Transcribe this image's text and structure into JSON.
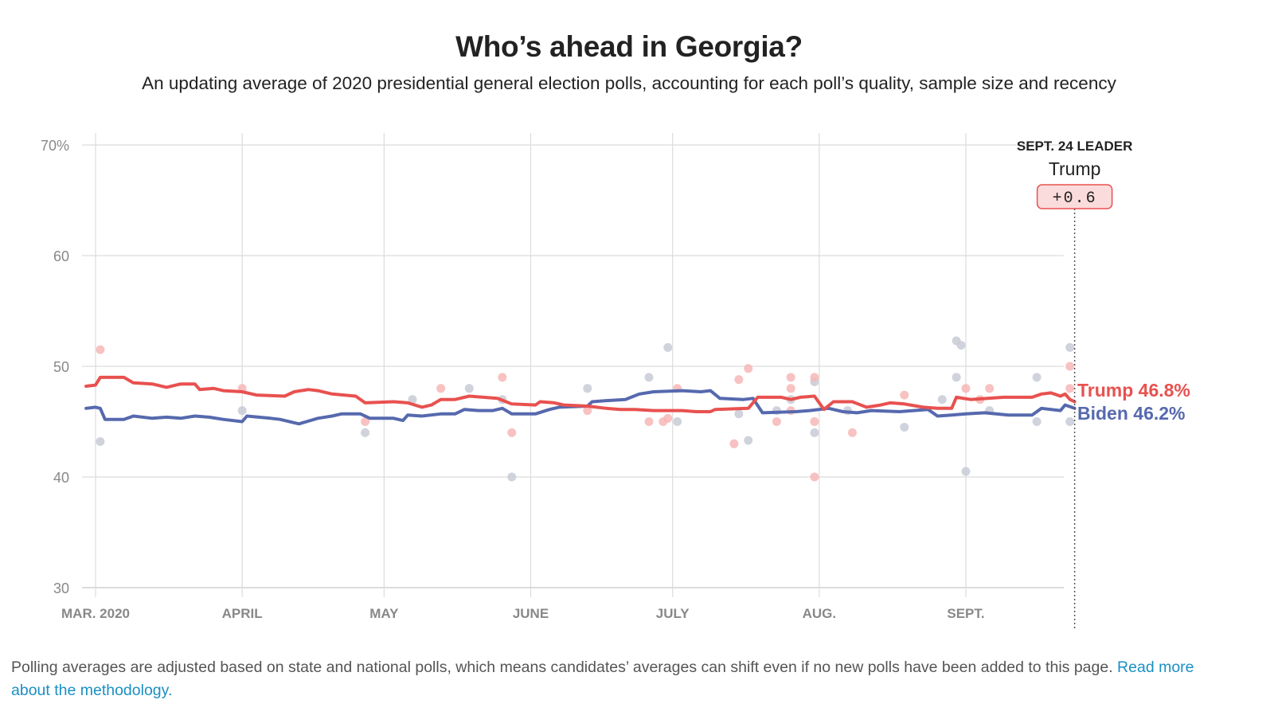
{
  "title": "Who’s ahead in Georgia?",
  "subtitle": "An updating average of 2020 presidential general election polls, accounting for each poll’s quality, sample size and recency",
  "footnote": {
    "text": "Polling averages are adjusted based on state and national polls, which means candidates’ averages can shift even if no new polls have been added to this page. ",
    "link": "Read more about the methodology."
  },
  "chart_data": {
    "type": "line",
    "x_axis": {
      "range": [
        "2020-02-28",
        "2020-09-24"
      ],
      "ticks": [
        {
          "date": "2020-03-01",
          "label": "MAR. 2020"
        },
        {
          "date": "2020-04-01",
          "label": "APRIL"
        },
        {
          "date": "2020-05-01",
          "label": "MAY"
        },
        {
          "date": "2020-06-01",
          "label": "JUNE"
        },
        {
          "date": "2020-07-01",
          "label": "JULY"
        },
        {
          "date": "2020-08-01",
          "label": "AUG."
        },
        {
          "date": "2020-09-01",
          "label": "SEPT."
        }
      ]
    },
    "y_axis": {
      "range": [
        30,
        70
      ],
      "ticks": [
        {
          "value": 70,
          "label": "70%"
        },
        {
          "value": 60,
          "label": "60"
        },
        {
          "value": 50,
          "label": "50"
        },
        {
          "value": 40,
          "label": "40"
        },
        {
          "value": 30,
          "label": "30"
        }
      ]
    },
    "grid": true,
    "leader_box": {
      "heading": "SEPT. 24 LEADER",
      "name": "Trump",
      "margin": "+0.6",
      "date": "2020-09-24"
    },
    "series": [
      {
        "name": "Trump",
        "end_label": "Trump 46.8%",
        "color": "#e8514f",
        "poll_color": "#f6b7b6",
        "average": [
          [
            "2020-02-28",
            48.2
          ],
          [
            "2020-03-01",
            48.3
          ],
          [
            "2020-03-02",
            49.0
          ],
          [
            "2020-03-07",
            49.0
          ],
          [
            "2020-03-09",
            48.5
          ],
          [
            "2020-03-13",
            48.4
          ],
          [
            "2020-03-16",
            48.1
          ],
          [
            "2020-03-19",
            48.4
          ],
          [
            "2020-03-22",
            48.4
          ],
          [
            "2020-03-23",
            47.9
          ],
          [
            "2020-03-26",
            48.0
          ],
          [
            "2020-03-28",
            47.8
          ],
          [
            "2020-04-01",
            47.7
          ],
          [
            "2020-04-04",
            47.4
          ],
          [
            "2020-04-10",
            47.3
          ],
          [
            "2020-04-12",
            47.7
          ],
          [
            "2020-04-15",
            47.9
          ],
          [
            "2020-04-17",
            47.8
          ],
          [
            "2020-04-20",
            47.5
          ],
          [
            "2020-04-25",
            47.3
          ],
          [
            "2020-04-27",
            46.7
          ],
          [
            "2020-05-03",
            46.8
          ],
          [
            "2020-05-06",
            46.7
          ],
          [
            "2020-05-09",
            46.3
          ],
          [
            "2020-05-11",
            46.5
          ],
          [
            "2020-05-13",
            47.0
          ],
          [
            "2020-05-16",
            47.0
          ],
          [
            "2020-05-19",
            47.3
          ],
          [
            "2020-05-25",
            47.1
          ],
          [
            "2020-05-28",
            46.6
          ],
          [
            "2020-06-02",
            46.5
          ],
          [
            "2020-06-03",
            46.8
          ],
          [
            "2020-06-06",
            46.7
          ],
          [
            "2020-06-08",
            46.5
          ],
          [
            "2020-06-13",
            46.4
          ],
          [
            "2020-06-17",
            46.2
          ],
          [
            "2020-06-20",
            46.1
          ],
          [
            "2020-06-23",
            46.1
          ],
          [
            "2020-06-27",
            46.0
          ],
          [
            "2020-07-03",
            46.0
          ],
          [
            "2020-07-06",
            45.9
          ],
          [
            "2020-07-09",
            45.9
          ],
          [
            "2020-07-10",
            46.1
          ],
          [
            "2020-07-17",
            46.2
          ],
          [
            "2020-07-19",
            47.2
          ],
          [
            "2020-07-24",
            47.2
          ],
          [
            "2020-07-26",
            47.0
          ],
          [
            "2020-07-28",
            47.2
          ],
          [
            "2020-07-31",
            47.3
          ],
          [
            "2020-08-02",
            46.1
          ],
          [
            "2020-08-04",
            46.8
          ],
          [
            "2020-08-08",
            46.8
          ],
          [
            "2020-08-11",
            46.3
          ],
          [
            "2020-08-14",
            46.5
          ],
          [
            "2020-08-16",
            46.7
          ],
          [
            "2020-08-19",
            46.6
          ],
          [
            "2020-08-23",
            46.3
          ],
          [
            "2020-08-26",
            46.2
          ],
          [
            "2020-08-29",
            46.2
          ],
          [
            "2020-08-30",
            47.2
          ],
          [
            "2020-09-02",
            47.0
          ],
          [
            "2020-09-09",
            47.2
          ],
          [
            "2020-09-15",
            47.2
          ],
          [
            "2020-09-17",
            47.5
          ],
          [
            "2020-09-19",
            47.6
          ],
          [
            "2020-09-21",
            47.3
          ],
          [
            "2020-09-22",
            47.5
          ],
          [
            "2020-09-23",
            47.0
          ],
          [
            "2020-09-24",
            46.8
          ]
        ],
        "polls": [
          [
            "2020-03-02",
            51.5
          ],
          [
            "2020-04-01",
            48.0
          ],
          [
            "2020-04-27",
            45.0
          ],
          [
            "2020-05-13",
            48.0
          ],
          [
            "2020-05-26",
            49.0
          ],
          [
            "2020-05-28",
            44.0
          ],
          [
            "2020-06-13",
            46.0
          ],
          [
            "2020-06-26",
            45.0
          ],
          [
            "2020-06-29",
            45.0
          ],
          [
            "2020-06-30",
            45.3
          ],
          [
            "2020-07-02",
            48.0
          ],
          [
            "2020-07-14",
            43.0
          ],
          [
            "2020-07-15",
            48.8
          ],
          [
            "2020-07-17",
            49.8
          ],
          [
            "2020-07-23",
            45.0
          ],
          [
            "2020-07-26",
            49.0
          ],
          [
            "2020-07-26",
            48.0
          ],
          [
            "2020-07-26",
            46.0
          ],
          [
            "2020-07-31",
            49.0
          ],
          [
            "2020-07-31",
            45.0
          ],
          [
            "2020-07-31",
            40.0
          ],
          [
            "2020-08-08",
            44.0
          ],
          [
            "2020-08-19",
            47.4
          ],
          [
            "2020-09-01",
            48.0
          ],
          [
            "2020-09-04",
            47.0
          ],
          [
            "2020-09-06",
            48.0
          ],
          [
            "2020-09-23",
            50.0
          ],
          [
            "2020-09-23",
            48.0
          ]
        ]
      },
      {
        "name": "Biden",
        "end_label": "Biden 46.2%",
        "color": "#5669ae",
        "poll_color": "#c8cbd6",
        "average": [
          [
            "2020-02-28",
            46.2
          ],
          [
            "2020-03-01",
            46.3
          ],
          [
            "2020-03-02",
            46.2
          ],
          [
            "2020-03-03",
            45.2
          ],
          [
            "2020-03-07",
            45.2
          ],
          [
            "2020-03-09",
            45.5
          ],
          [
            "2020-03-13",
            45.3
          ],
          [
            "2020-03-16",
            45.4
          ],
          [
            "2020-03-19",
            45.3
          ],
          [
            "2020-03-22",
            45.5
          ],
          [
            "2020-03-25",
            45.4
          ],
          [
            "2020-03-28",
            45.2
          ],
          [
            "2020-04-01",
            45.0
          ],
          [
            "2020-04-02",
            45.5
          ],
          [
            "2020-04-07",
            45.3
          ],
          [
            "2020-04-09",
            45.2
          ],
          [
            "2020-04-13",
            44.8
          ],
          [
            "2020-04-17",
            45.3
          ],
          [
            "2020-04-20",
            45.5
          ],
          [
            "2020-04-22",
            45.7
          ],
          [
            "2020-04-26",
            45.7
          ],
          [
            "2020-04-28",
            45.3
          ],
          [
            "2020-05-03",
            45.3
          ],
          [
            "2020-05-05",
            45.1
          ],
          [
            "2020-05-06",
            45.6
          ],
          [
            "2020-05-09",
            45.5
          ],
          [
            "2020-05-13",
            45.7
          ],
          [
            "2020-05-16",
            45.7
          ],
          [
            "2020-05-18",
            46.1
          ],
          [
            "2020-05-21",
            46.0
          ],
          [
            "2020-05-24",
            46.0
          ],
          [
            "2020-05-26",
            46.2
          ],
          [
            "2020-05-28",
            45.7
          ],
          [
            "2020-06-02",
            45.7
          ],
          [
            "2020-06-05",
            46.1
          ],
          [
            "2020-06-07",
            46.3
          ],
          [
            "2020-06-13",
            46.4
          ],
          [
            "2020-06-14",
            46.8
          ],
          [
            "2020-06-17",
            46.9
          ],
          [
            "2020-06-21",
            47.0
          ],
          [
            "2020-06-24",
            47.5
          ],
          [
            "2020-06-27",
            47.7
          ],
          [
            "2020-07-03",
            47.8
          ],
          [
            "2020-07-07",
            47.7
          ],
          [
            "2020-07-09",
            47.8
          ],
          [
            "2020-07-11",
            47.1
          ],
          [
            "2020-07-16",
            47.0
          ],
          [
            "2020-07-18",
            47.1
          ],
          [
            "2020-07-20",
            45.8
          ],
          [
            "2020-07-27",
            45.9
          ],
          [
            "2020-07-30",
            46.0
          ],
          [
            "2020-08-03",
            46.2
          ],
          [
            "2020-08-06",
            45.9
          ],
          [
            "2020-08-09",
            45.8
          ],
          [
            "2020-08-12",
            46.0
          ],
          [
            "2020-08-18",
            45.9
          ],
          [
            "2020-08-24",
            46.1
          ],
          [
            "2020-08-26",
            45.5
          ],
          [
            "2020-08-29",
            45.6
          ],
          [
            "2020-09-01",
            45.7
          ],
          [
            "2020-09-05",
            45.8
          ],
          [
            "2020-09-10",
            45.6
          ],
          [
            "2020-09-15",
            45.6
          ],
          [
            "2020-09-17",
            46.2
          ],
          [
            "2020-09-21",
            46.0
          ],
          [
            "2020-09-22",
            46.5
          ],
          [
            "2020-09-24",
            46.2
          ]
        ],
        "polls": [
          [
            "2020-03-02",
            43.2
          ],
          [
            "2020-04-01",
            46.0
          ],
          [
            "2020-04-27",
            44.0
          ],
          [
            "2020-05-07",
            47.0
          ],
          [
            "2020-05-19",
            48.0
          ],
          [
            "2020-05-26",
            47.0
          ],
          [
            "2020-05-28",
            40.0
          ],
          [
            "2020-06-13",
            48.0
          ],
          [
            "2020-06-26",
            49.0
          ],
          [
            "2020-06-30",
            51.7
          ],
          [
            "2020-07-02",
            45.0
          ],
          [
            "2020-07-15",
            45.7
          ],
          [
            "2020-07-17",
            43.3
          ],
          [
            "2020-07-23",
            46.0
          ],
          [
            "2020-07-26",
            47.0
          ],
          [
            "2020-07-31",
            48.6
          ],
          [
            "2020-07-31",
            44.0
          ],
          [
            "2020-08-07",
            46.0
          ],
          [
            "2020-08-19",
            44.5
          ],
          [
            "2020-08-27",
            47.0
          ],
          [
            "2020-08-30",
            52.3
          ],
          [
            "2020-08-31",
            51.9
          ],
          [
            "2020-08-30",
            49.0
          ],
          [
            "2020-09-01",
            40.5
          ],
          [
            "2020-09-06",
            46.0
          ],
          [
            "2020-09-16",
            49.0
          ],
          [
            "2020-09-16",
            45.0
          ],
          [
            "2020-09-23",
            51.7
          ],
          [
            "2020-09-23",
            45.0
          ]
        ]
      }
    ]
  }
}
